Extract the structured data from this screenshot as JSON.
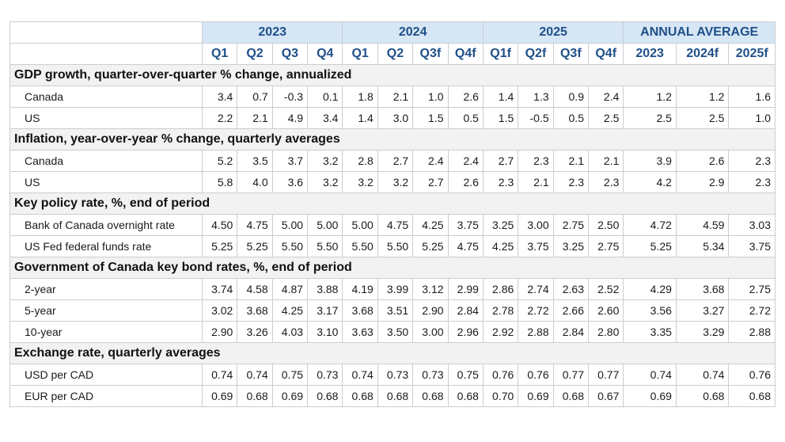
{
  "header": {
    "groups": [
      {
        "label": "2023",
        "span": 4
      },
      {
        "label": "2024",
        "span": 4
      },
      {
        "label": "2025",
        "span": 4
      },
      {
        "label": "ANNUAL AVERAGE",
        "span": 3
      }
    ],
    "columns": [
      "Q1",
      "Q2",
      "Q3",
      "Q4",
      "Q1",
      "Q2",
      "Q3f",
      "Q4f",
      "Q1f",
      "Q2f",
      "Q3f",
      "Q4f",
      "2023",
      "2024f",
      "2025f"
    ]
  },
  "sections": [
    {
      "title": "GDP growth, quarter-over-quarter % change, annualized",
      "rows": [
        {
          "label": "Canada",
          "values": [
            "3.4",
            "0.7",
            "-0.3",
            "0.1",
            "1.8",
            "2.1",
            "1.0",
            "2.6",
            "1.4",
            "1.3",
            "0.9",
            "2.4",
            "1.2",
            "1.2",
            "1.6"
          ]
        },
        {
          "label": "US",
          "values": [
            "2.2",
            "2.1",
            "4.9",
            "3.4",
            "1.4",
            "3.0",
            "1.5",
            "0.5",
            "1.5",
            "-0.5",
            "0.5",
            "2.5",
            "2.5",
            "2.5",
            "1.0"
          ]
        }
      ]
    },
    {
      "title": "Inflation, year-over-year % change, quarterly averages",
      "rows": [
        {
          "label": "Canada",
          "values": [
            "5.2",
            "3.5",
            "3.7",
            "3.2",
            "2.8",
            "2.7",
            "2.4",
            "2.4",
            "2.7",
            "2.3",
            "2.1",
            "2.1",
            "3.9",
            "2.6",
            "2.3"
          ]
        },
        {
          "label": "US",
          "values": [
            "5.8",
            "4.0",
            "3.6",
            "3.2",
            "3.2",
            "3.2",
            "2.7",
            "2.6",
            "2.3",
            "2.1",
            "2.3",
            "2.3",
            "4.2",
            "2.9",
            "2.3"
          ]
        }
      ]
    },
    {
      "title": "Key policy rate, %, end of period",
      "rows": [
        {
          "label": "Bank of Canada overnight rate",
          "values": [
            "4.50",
            "4.75",
            "5.00",
            "5.00",
            "5.00",
            "4.75",
            "4.25",
            "3.75",
            "3.25",
            "3.00",
            "2.75",
            "2.50",
            "4.72",
            "4.59",
            "3.03"
          ]
        },
        {
          "label": "US Fed federal funds rate",
          "values": [
            "5.25",
            "5.25",
            "5.50",
            "5.50",
            "5.50",
            "5.50",
            "5.25",
            "4.75",
            "4.25",
            "3.75",
            "3.25",
            "2.75",
            "5.25",
            "5.34",
            "3.75"
          ]
        }
      ]
    },
    {
      "title": "Government of Canada key bond rates, %, end of period",
      "rows": [
        {
          "label": "2-year",
          "values": [
            "3.74",
            "4.58",
            "4.87",
            "3.88",
            "4.19",
            "3.99",
            "3.12",
            "2.99",
            "2.86",
            "2.74",
            "2.63",
            "2.52",
            "4.29",
            "3.68",
            "2.75"
          ]
        },
        {
          "label": "5-year",
          "values": [
            "3.02",
            "3.68",
            "4.25",
            "3.17",
            "3.68",
            "3.51",
            "2.90",
            "2.84",
            "2.78",
            "2.72",
            "2.66",
            "2.60",
            "3.56",
            "3.27",
            "2.72"
          ]
        },
        {
          "label": "10-year",
          "values": [
            "2.90",
            "3.26",
            "4.03",
            "3.10",
            "3.63",
            "3.50",
            "3.00",
            "2.96",
            "2.92",
            "2.88",
            "2.84",
            "2.80",
            "3.35",
            "3.29",
            "2.88"
          ]
        }
      ]
    },
    {
      "title": "Exchange rate, quarterly averages",
      "rows": [
        {
          "label": "USD per CAD",
          "values": [
            "0.74",
            "0.74",
            "0.75",
            "0.73",
            "0.74",
            "0.73",
            "0.73",
            "0.75",
            "0.76",
            "0.76",
            "0.77",
            "0.77",
            "0.74",
            "0.74",
            "0.76"
          ]
        },
        {
          "label": "EUR per CAD",
          "values": [
            "0.69",
            "0.68",
            "0.69",
            "0.68",
            "0.68",
            "0.68",
            "0.68",
            "0.68",
            "0.70",
            "0.69",
            "0.68",
            "0.67",
            "0.69",
            "0.68",
            "0.68"
          ]
        }
      ]
    }
  ]
}
